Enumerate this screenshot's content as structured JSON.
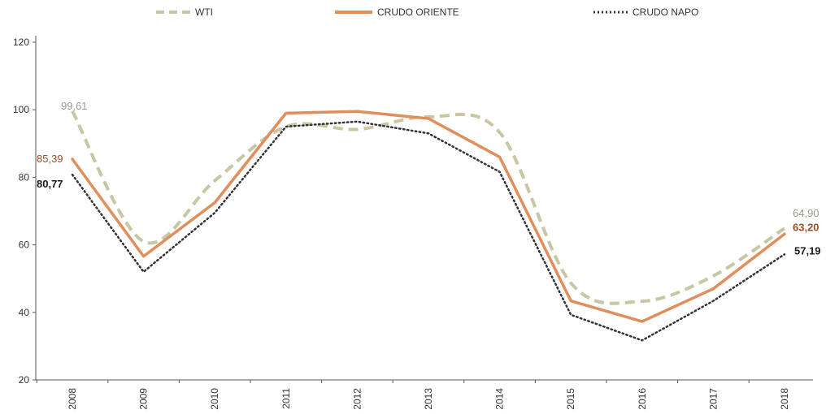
{
  "chart_data": {
    "type": "line",
    "categories": [
      "2008",
      "2009",
      "2010",
      "2011",
      "2012",
      "2013",
      "2014",
      "2015",
      "2016",
      "2017",
      "2018"
    ],
    "ylim": [
      20,
      120
    ],
    "yticks": [
      20,
      40,
      60,
      80,
      100,
      120
    ],
    "grid": false,
    "legend_position": "top",
    "series": [
      {
        "name": "WTI",
        "color": "#c9c7a3",
        "style": "dashed",
        "values": [
          99.61,
          61.0,
          79.0,
          95.0,
          94.2,
          97.9,
          93.3,
          48.7,
          43.3,
          50.8,
          64.9
        ],
        "start_label": "99,61",
        "end_label": "64,90",
        "label_color": "#9a9a8c"
      },
      {
        "name": "CRUDO ORIENTE",
        "color": "#e08f5c",
        "style": "solid",
        "values": [
          85.39,
          56.6,
          72.5,
          99.0,
          99.5,
          97.4,
          86.0,
          43.4,
          37.3,
          47.0,
          63.2
        ],
        "start_label": "85,39",
        "end_label": "63,20",
        "label_color": "#a04a22"
      },
      {
        "name": "CRUDO NAPO",
        "color": "#333333",
        "style": "dotted",
        "values": [
          80.77,
          52.0,
          69.5,
          95.0,
          96.5,
          93.0,
          81.6,
          39.3,
          31.7,
          43.4,
          57.19
        ],
        "start_label": "80,77",
        "end_label": "57,19",
        "label_color": "#1a1a1a"
      }
    ]
  }
}
